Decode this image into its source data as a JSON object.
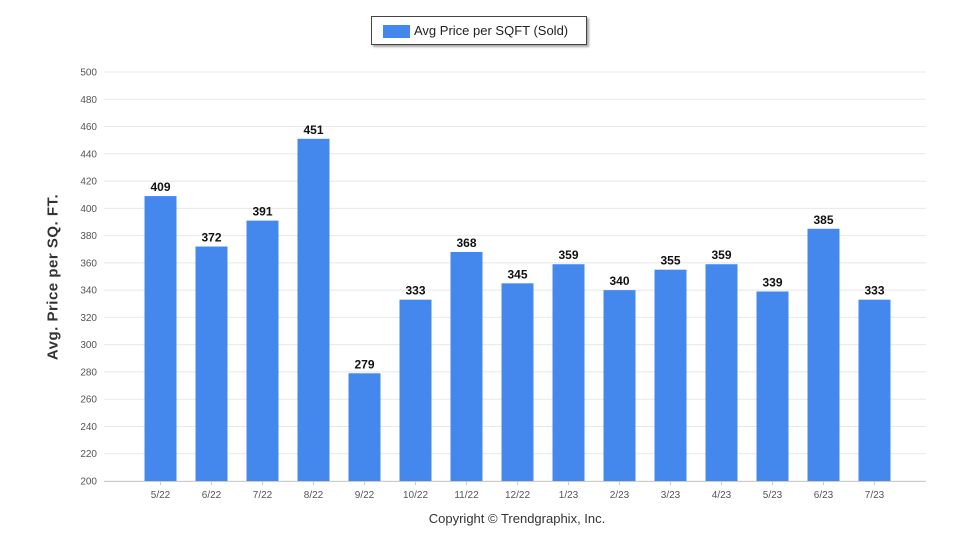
{
  "legend": {
    "label": "Avg Price per SQFT (Sold)"
  },
  "footer": {
    "copyright": "Copyright © Trendgraphix, Inc."
  },
  "colors": {
    "bar": "#4488ee",
    "grid": "#e8e8e8",
    "tick_text": "#555555",
    "data_label": "#111111"
  },
  "chart_data": {
    "type": "bar",
    "title": "",
    "xlabel": "",
    "ylabel": "Avg. Price per SQ. FT.",
    "ylim": [
      200,
      500
    ],
    "y_ticks": [
      200,
      220,
      240,
      260,
      280,
      300,
      320,
      340,
      360,
      380,
      400,
      420,
      440,
      460,
      480,
      500
    ],
    "grid": true,
    "legend_position": "top-center",
    "categories": [
      "5/22",
      "6/22",
      "7/22",
      "8/22",
      "9/22",
      "10/22",
      "11/22",
      "12/22",
      "1/23",
      "2/23",
      "3/23",
      "4/23",
      "5/23",
      "6/23",
      "7/23"
    ],
    "series": [
      {
        "name": "Avg Price per SQFT (Sold)",
        "values": [
          409,
          372,
          391,
          451,
          279,
          333,
          368,
          345,
          359,
          340,
          355,
          359,
          339,
          385,
          333
        ]
      }
    ]
  }
}
